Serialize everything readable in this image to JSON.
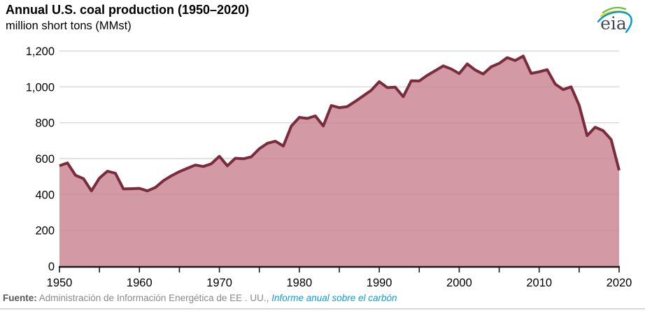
{
  "header": {
    "title": "Annual U.S. coal production (1950–2020)",
    "subtitle": "million short tons (MMst)"
  },
  "logo": {
    "text": "eia",
    "text_color": "#3e4b54",
    "arc_colors": {
      "green": "#68bd45",
      "yellow": "#f9d006",
      "blue": "#0096d7"
    }
  },
  "footer": {
    "label": "Fuente:",
    "text": "Administración de Información Energética de EE . UU.,",
    "link": "Informe anual sobre el carbón"
  },
  "chart_data": {
    "type": "area",
    "title": "Annual U.S. coal production (1950–2020)",
    "ylabel": "million short tons (MMst)",
    "xlim": [
      1950,
      2020
    ],
    "ylim": [
      0,
      1200
    ],
    "grid": "horizontal",
    "legend": "none",
    "ytick_values": [
      0,
      200,
      400,
      600,
      800,
      1000,
      1200
    ],
    "ytick_labels": [
      "0",
      "200",
      "400",
      "600",
      "800",
      "1,000",
      "1,200"
    ],
    "xtick_major": [
      1950,
      1960,
      1970,
      1980,
      1990,
      2000,
      2010,
      2020
    ],
    "xtick_minor_step": 5,
    "colors": {
      "line": "#7a2b3c",
      "fill": "#c87f8e",
      "fill_opacity": 0.8,
      "grid": "#d9d9d9",
      "axis": "#1a1a1a",
      "labels": "#000000"
    },
    "years": [
      1950,
      1951,
      1952,
      1953,
      1954,
      1955,
      1956,
      1957,
      1958,
      1959,
      1960,
      1961,
      1962,
      1963,
      1964,
      1965,
      1966,
      1967,
      1968,
      1969,
      1970,
      1971,
      1972,
      1973,
      1974,
      1975,
      1976,
      1977,
      1978,
      1979,
      1980,
      1981,
      1982,
      1983,
      1984,
      1985,
      1986,
      1987,
      1988,
      1989,
      1990,
      1991,
      1992,
      1993,
      1994,
      1995,
      1996,
      1997,
      1998,
      1999,
      2000,
      2001,
      2002,
      2003,
      2004,
      2005,
      2006,
      2007,
      2008,
      2009,
      2010,
      2011,
      2012,
      2013,
      2014,
      2015,
      2016,
      2017,
      2018,
      2019,
      2020
    ],
    "values": [
      560,
      576,
      507,
      488,
      420,
      491,
      530,
      518,
      431,
      432,
      434,
      420,
      439,
      477,
      504,
      527,
      546,
      564,
      556,
      571,
      613,
      560,
      602,
      599,
      610,
      655,
      685,
      697,
      670,
      781,
      830,
      824,
      838,
      782,
      896,
      884,
      890,
      919,
      950,
      981,
      1029,
      996,
      998,
      945,
      1034,
      1033,
      1064,
      1090,
      1117,
      1100,
      1074,
      1128,
      1094,
      1072,
      1112,
      1131,
      1163,
      1147,
      1172,
      1075,
      1084,
      1096,
      1016,
      985,
      1000,
      897,
      728,
      775,
      756,
      706,
      535
    ]
  }
}
